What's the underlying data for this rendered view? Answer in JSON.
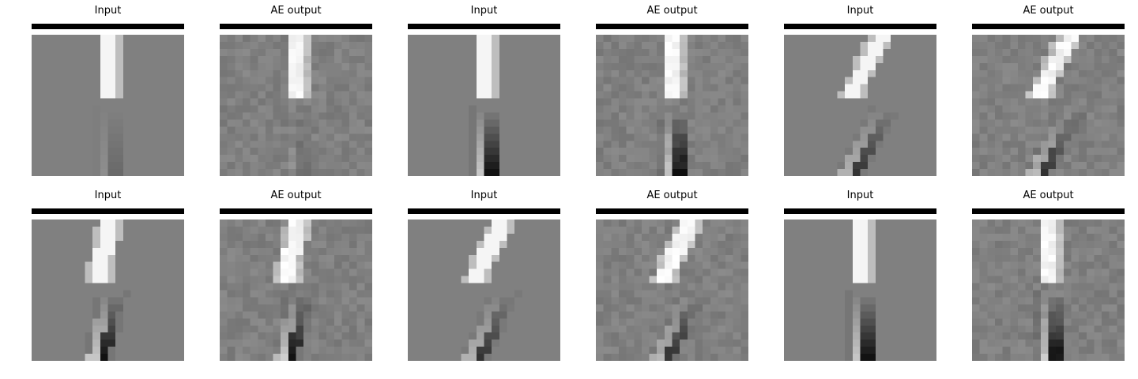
{
  "figure": {
    "background": "#ffffff",
    "panels": [
      {
        "title": "Input",
        "stripe": "vertical",
        "angle": 0,
        "lower": "faint",
        "noise": 0
      },
      {
        "title": "AE output",
        "stripe": "vertical",
        "angle": 0,
        "lower": "faint",
        "noise": 1
      },
      {
        "title": "Input",
        "stripe": "vertical",
        "angle": 0,
        "lower": "strong",
        "noise": 0
      },
      {
        "title": "AE output",
        "stripe": "vertical",
        "angle": 0,
        "lower": "strong",
        "noise": 1
      },
      {
        "title": "Input",
        "stripe": "tilted",
        "angle": 28,
        "lower": "medium",
        "noise": 0
      },
      {
        "title": "AE output",
        "stripe": "tilted",
        "angle": 28,
        "lower": "medium",
        "noise": 1
      },
      {
        "title": "Input",
        "stripe": "tilted",
        "angle": 12,
        "lower": "strong",
        "noise": 0
      },
      {
        "title": "AE output",
        "stripe": "tilted",
        "angle": 12,
        "lower": "strong",
        "noise": 1
      },
      {
        "title": "Input",
        "stripe": "tilted",
        "angle": 26,
        "lower": "medium",
        "noise": 0
      },
      {
        "title": "AE output",
        "stripe": "tilted",
        "angle": 26,
        "lower": "medium",
        "noise": 1
      },
      {
        "title": "Input",
        "stripe": "vertical",
        "angle": 0,
        "lower": "strong",
        "noise": 0
      },
      {
        "title": "AE output",
        "stripe": "vertical",
        "angle": 0,
        "lower": "strong",
        "noise": 1
      }
    ]
  }
}
